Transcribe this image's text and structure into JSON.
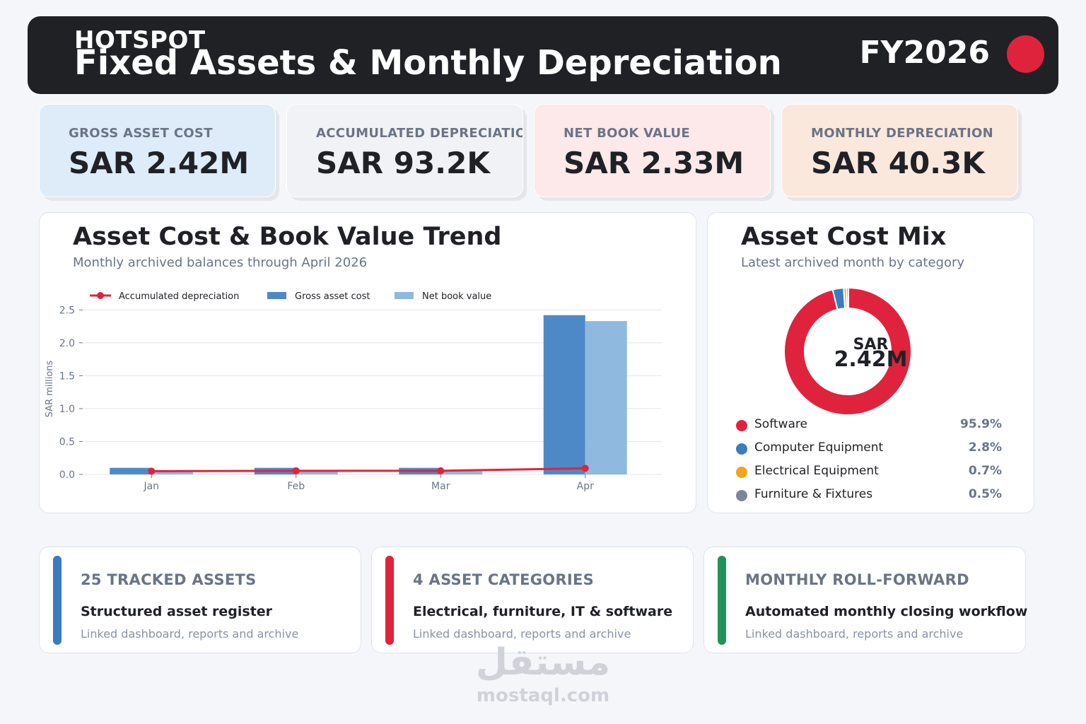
{
  "header": {
    "subtitle": "HOTSPOT",
    "title": "Fixed Assets & Monthly Depreciation",
    "fiscal_year": "FY2026",
    "accent_color": "#e0233d"
  },
  "kpis": [
    {
      "label": "GROSS ASSET COST",
      "value": "SAR 2.42M",
      "bg": "#ddecf8"
    },
    {
      "label": "ACCUMULATED DEPRECIATION",
      "value": "SAR 93.2K",
      "bg": "#f0f2f5"
    },
    {
      "label": "NET BOOK VALUE",
      "value": "SAR 2.33M",
      "bg": "#fde8ea"
    },
    {
      "label": "MONTHLY DEPRECIATION",
      "value": "SAR 40.3K",
      "bg": "#fbe8dd"
    }
  ],
  "trend_panel": {
    "title": "Asset Cost & Book Value Trend",
    "subtitle": "Monthly archived balances through April 2026"
  },
  "mix_panel": {
    "title": "Asset Cost Mix",
    "subtitle": "Latest archived month by category",
    "center_top": "SAR",
    "center_value": "2.42M"
  },
  "chart_data": [
    {
      "type": "bar",
      "ylabel": "SAR millions",
      "xlabel": "",
      "ylim": [
        0,
        2.6
      ],
      "yticks": [
        "0.0",
        "0.5",
        "1.0",
        "1.5",
        "2.0",
        "2.5"
      ],
      "categories": [
        "Jan",
        "Feb",
        "Mar",
        "Apr"
      ],
      "legend_position": "top-left",
      "grid": true,
      "series": [
        {
          "name": "Gross asset cost",
          "type": "bar",
          "color": "#4e89c7",
          "values": [
            0.1,
            0.1,
            0.1,
            2.42
          ]
        },
        {
          "name": "Net book value",
          "type": "bar",
          "color": "#8fb9de",
          "values": [
            0.05,
            0.05,
            0.05,
            2.33
          ]
        },
        {
          "name": "Accumulated depreciation",
          "type": "line",
          "color": "#e0233d",
          "values": [
            0.05,
            0.055,
            0.055,
            0.093
          ]
        }
      ]
    },
    {
      "type": "pie",
      "categories": [
        "Software",
        "Computer Equipment",
        "Electrical Equipment",
        "Furniture & Fixtures"
      ],
      "values": [
        95.9,
        2.8,
        0.7,
        0.5
      ],
      "labels": [
        "95.9%",
        "2.8%",
        "0.7%",
        "0.5%"
      ],
      "colors": [
        "#e0233d",
        "#3b7bbf",
        "#f0a51a",
        "#7c8597"
      ]
    }
  ],
  "cards": [
    {
      "head": "25 TRACKED ASSETS",
      "strong": "Structured asset register",
      "small": "Linked dashboard, reports and archive",
      "color": "#3b7bbf"
    },
    {
      "head": "4 ASSET CATEGORIES",
      "strong": "Electrical, furniture, IT & software",
      "small": "Linked dashboard, reports and archive",
      "color": "#e0233d"
    },
    {
      "head": "MONTHLY ROLL-FORWARD",
      "strong": "Automated monthly closing workflow",
      "small": "Linked dashboard, reports and archive",
      "color": "#23925a"
    }
  ],
  "watermark": {
    "arabic": "مستقل",
    "latin": "mostaql.com"
  }
}
